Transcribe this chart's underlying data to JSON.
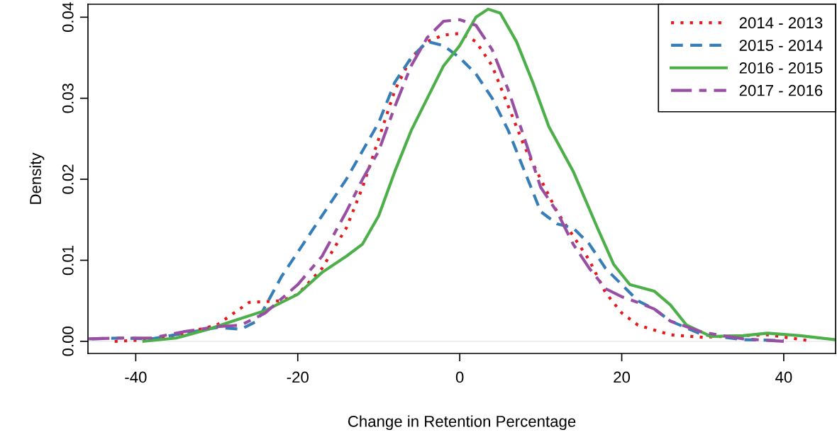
{
  "chart_data": {
    "type": "line",
    "xlabel": "Change in Retention Percentage",
    "ylabel": "Density",
    "xlim": [
      -45.9,
      46.4
    ],
    "ylim": [
      -0.0015,
      0.0416
    ],
    "xticks": [
      -40,
      -20,
      0,
      20,
      40
    ],
    "yticks": [
      {
        "value": 0,
        "label": "0.00"
      },
      {
        "value": 0.01,
        "label": "0.01"
      },
      {
        "value": 0.02,
        "label": "0.02"
      },
      {
        "value": 0.03,
        "label": "0.03"
      },
      {
        "value": 0.04,
        "label": "0.04"
      }
    ],
    "grid": false,
    "legend": "top right",
    "ref_lines": [
      {
        "axis": "y",
        "value": 0,
        "color": "#e6e6e6"
      }
    ],
    "series": [
      {
        "name": "2014 - 2013",
        "color": "#e41a1c",
        "line_style": "dotted",
        "x": [
          -42.6,
          -38,
          -34,
          -30,
          -26,
          -22,
          -20,
          -17,
          -14,
          -12,
          -10,
          -8,
          -6,
          -4,
          -2,
          0,
          2,
          4,
          6,
          8,
          10,
          12,
          14,
          16,
          18,
          20,
          22,
          26,
          30,
          35,
          38,
          43
        ],
        "values": [
          0.0,
          0.0002,
          0.001,
          0.002,
          0.0048,
          0.005,
          0.0058,
          0.009,
          0.014,
          0.019,
          0.025,
          0.031,
          0.035,
          0.037,
          0.0378,
          0.038,
          0.037,
          0.034,
          0.029,
          0.024,
          0.02,
          0.016,
          0.013,
          0.01,
          0.006,
          0.0035,
          0.002,
          0.0008,
          0.0005,
          0.0007,
          0.0008,
          0.0001
        ]
      },
      {
        "name": "2015 - 2014",
        "color": "#377eb8",
        "line_style": "dashed",
        "x": [
          -45.4,
          -42,
          -38,
          -34,
          -30,
          -27,
          -25,
          -22,
          -18,
          -14,
          -10,
          -8,
          -6,
          -4,
          -2,
          0,
          2,
          4,
          6,
          8,
          10,
          12,
          14,
          16,
          18,
          20,
          22,
          24,
          26,
          30,
          35,
          40
        ],
        "values": [
          0.0003,
          0.0004,
          0.0003,
          0.001,
          0.0017,
          0.0015,
          0.0025,
          0.008,
          0.014,
          0.02,
          0.027,
          0.032,
          0.035,
          0.037,
          0.0365,
          0.035,
          0.033,
          0.03,
          0.026,
          0.021,
          0.016,
          0.0145,
          0.014,
          0.012,
          0.009,
          0.007,
          0.005,
          0.004,
          0.0025,
          0.0008,
          0.0002,
          0.0001
        ]
      },
      {
        "name": "2016 - 2015",
        "color": "#4daf4a",
        "line_style": "solid",
        "x": [
          -39,
          -35,
          -31,
          -28,
          -24,
          -20,
          -17,
          -14,
          -12,
          -10,
          -8,
          -6,
          -4,
          -2,
          0,
          2,
          3.5,
          5,
          7,
          9,
          11,
          14,
          17,
          19,
          21,
          24,
          26,
          28,
          31,
          35,
          38,
          42,
          46.4
        ],
        "values": [
          0.0,
          0.0004,
          0.0015,
          0.0025,
          0.0038,
          0.0058,
          0.0085,
          0.0105,
          0.012,
          0.0155,
          0.021,
          0.026,
          0.03,
          0.034,
          0.0365,
          0.04,
          0.041,
          0.0405,
          0.037,
          0.032,
          0.0265,
          0.021,
          0.014,
          0.0095,
          0.007,
          0.0062,
          0.0045,
          0.002,
          0.0006,
          0.0007,
          0.001,
          0.0007,
          0.0002
        ]
      },
      {
        "name": "2017 - 2016",
        "color": "#984ea3",
        "line_style": "dashdot",
        "x": [
          -45.8,
          -42,
          -38,
          -34,
          -30,
          -27,
          -24,
          -20,
          -17,
          -14,
          -12,
          -10,
          -8,
          -6,
          -4,
          -2,
          0,
          2,
          4,
          6,
          8,
          10,
          12,
          14,
          16,
          18,
          20,
          22,
          24,
          26,
          30,
          35,
          40
        ],
        "values": [
          0.0003,
          0.0004,
          0.0004,
          0.0012,
          0.0018,
          0.002,
          0.0035,
          0.007,
          0.0105,
          0.016,
          0.02,
          0.0235,
          0.029,
          0.034,
          0.0375,
          0.0395,
          0.0397,
          0.039,
          0.036,
          0.031,
          0.025,
          0.019,
          0.016,
          0.012,
          0.009,
          0.0065,
          0.0055,
          0.0048,
          0.004,
          0.0025,
          0.0011,
          0.0003,
          0.0
        ]
      }
    ]
  }
}
